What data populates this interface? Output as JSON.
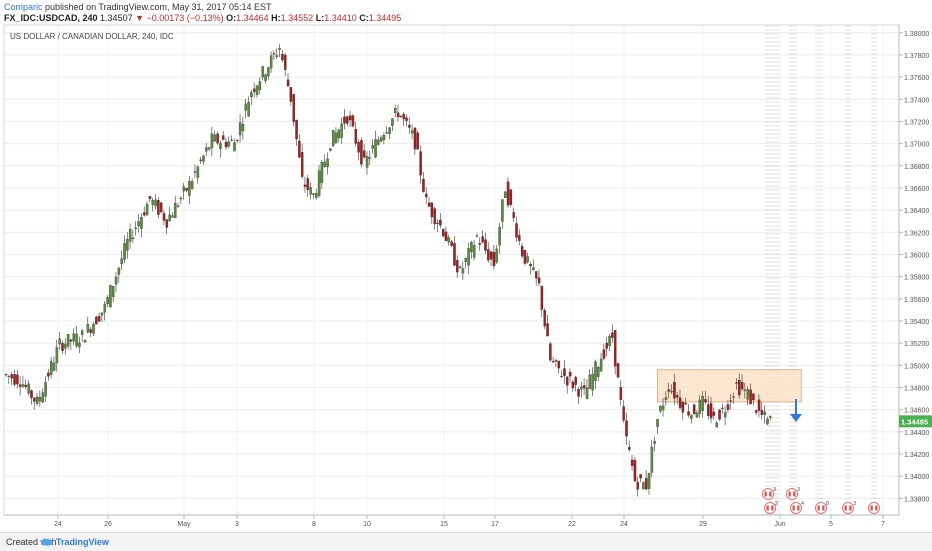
{
  "header": {
    "author": "Comparic",
    "published": "published on TradingView.com, May 31, 2017 05:14 EST"
  },
  "symbol": {
    "id": "FX_IDC:USDCAD, 240",
    "last": "1.34507",
    "change": "▼ −0.00173 (−0.13%)",
    "o_label": "O:",
    "o": "1.34464",
    "h_label": "H:",
    "h": "1.34552",
    "l_label": "L:",
    "l": "1.34410",
    "c_label": "C:",
    "c": "1.34495"
  },
  "footer": {
    "created": "Created with",
    "brand": "TradingView"
  },
  "colors": {
    "up": "#5b8c3e",
    "down": "#a02020",
    "zone_fill": "#fce0c4",
    "zone_stroke": "#e0a070",
    "arrow": "#2f7bd5",
    "price_badge": "#4caf50"
  },
  "chart_data": {
    "type": "candlestick",
    "title": "US DOLLAR / CANADIAN DOLLAR, 240, IDC",
    "ylim": [
      1.3365,
      1.3807
    ],
    "y_ticks": [
      "1.38000",
      "1.37800",
      "1.37600",
      "1.37400",
      "1.37200",
      "1.37000",
      "1.36800",
      "1.36600",
      "1.36400",
      "1.36200",
      "1.36000",
      "1.35800",
      "1.35600",
      "1.35400",
      "1.35200",
      "1.35000",
      "1.34800",
      "1.34600",
      "1.34400",
      "1.34200",
      "1.34000",
      "1.33800"
    ],
    "x_ticks": [
      "24",
      "26",
      "May",
      "3",
      "8",
      "10",
      "15",
      "17",
      "22",
      "24",
      "29",
      "Jun",
      "5",
      "7"
    ],
    "current_price": "1.34495",
    "key_levels": [
      {
        "x": 0,
        "y": 1.3492
      },
      {
        "x": 6,
        "y": 1.3487
      },
      {
        "x": 12,
        "y": 1.3466
      },
      {
        "x": 20,
        "y": 1.3519
      },
      {
        "x": 28,
        "y": 1.3526
      },
      {
        "x": 36,
        "y": 1.3552
      },
      {
        "x": 44,
        "y": 1.3611
      },
      {
        "x": 52,
        "y": 1.365
      },
      {
        "x": 58,
        "y": 1.3631
      },
      {
        "x": 66,
        "y": 1.3663
      },
      {
        "x": 74,
        "y": 1.3703
      },
      {
        "x": 82,
        "y": 1.3701
      },
      {
        "x": 88,
        "y": 1.3748
      },
      {
        "x": 94,
        "y": 1.3771
      },
      {
        "x": 98,
        "y": 1.3787
      },
      {
        "x": 102,
        "y": 1.3741
      },
      {
        "x": 106,
        "y": 1.3666
      },
      {
        "x": 110,
        "y": 1.3653
      },
      {
        "x": 116,
        "y": 1.3701
      },
      {
        "x": 122,
        "y": 1.3725
      },
      {
        "x": 128,
        "y": 1.3681
      },
      {
        "x": 134,
        "y": 1.3709
      },
      {
        "x": 140,
        "y": 1.3729
      },
      {
        "x": 146,
        "y": 1.3702
      },
      {
        "x": 150,
        "y": 1.3647
      },
      {
        "x": 156,
        "y": 1.3622
      },
      {
        "x": 162,
        "y": 1.3583
      },
      {
        "x": 168,
        "y": 1.3616
      },
      {
        "x": 174,
        "y": 1.3591
      },
      {
        "x": 178,
        "y": 1.3661
      },
      {
        "x": 184,
        "y": 1.3602
      },
      {
        "x": 190,
        "y": 1.3571
      },
      {
        "x": 194,
        "y": 1.3504
      },
      {
        "x": 200,
        "y": 1.3488
      },
      {
        "x": 206,
        "y": 1.3474
      },
      {
        "x": 212,
        "y": 1.3508
      },
      {
        "x": 216,
        "y": 1.3526
      },
      {
        "x": 220,
        "y": 1.3445
      },
      {
        "x": 224,
        "y": 1.3396
      },
      {
        "x": 228,
        "y": 1.3392
      },
      {
        "x": 232,
        "y": 1.3452
      },
      {
        "x": 236,
        "y": 1.3482
      },
      {
        "x": 240,
        "y": 1.3467
      },
      {
        "x": 244,
        "y": 1.3457
      },
      {
        "x": 248,
        "y": 1.3466
      },
      {
        "x": 252,
        "y": 1.3451
      },
      {
        "x": 256,
        "y": 1.3462
      },
      {
        "x": 260,
        "y": 1.3482
      },
      {
        "x": 264,
        "y": 1.3474
      },
      {
        "x": 268,
        "y": 1.3457
      },
      {
        "x": 271,
        "y": 1.34495
      }
    ],
    "zone": {
      "x_from": 231,
      "x_to": 282,
      "y_low": 1.3467,
      "y_high": 1.3496
    },
    "events": {
      "row1": [
        {
          "x": 270,
          "n": "3"
        },
        {
          "x": 282,
          "n": "3"
        }
      ],
      "row2": [
        {
          "x": 272,
          "n": "2"
        },
        {
          "x": 282,
          "n": "4"
        },
        {
          "x": 293,
          "n": "8"
        },
        {
          "x": 304,
          "n": "3"
        },
        {
          "x": 315,
          "n": ""
        }
      ]
    }
  }
}
